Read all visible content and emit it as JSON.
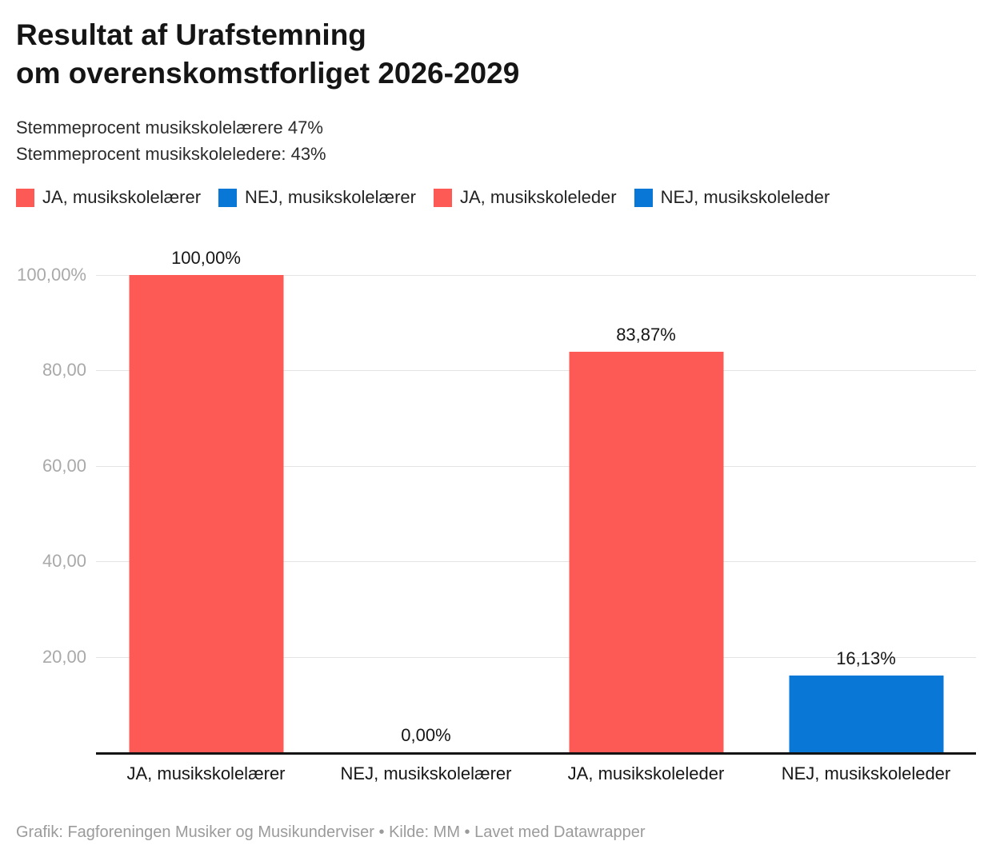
{
  "header": {
    "title": "Resultat af Urafstemning\nom overenskomstforliget 2026-2029",
    "subtitle": "Stemmeprocent musikskolelærere 47%\nStemmeprocent musikskoleledere: 43%"
  },
  "legend": {
    "position": "top",
    "items": [
      {
        "label": "JA, musikskolelærer",
        "color": "#fd5a55"
      },
      {
        "label": "NEJ, musikskolelærer",
        "color": "#0877d6"
      },
      {
        "label": "JA, musikskoleleder",
        "color": "#fd5a55"
      },
      {
        "label": "NEJ, musikskoleleder",
        "color": "#0877d6"
      }
    ]
  },
  "chart_data": {
    "type": "bar",
    "title": "Resultat af Urafstemning om overenskomstforliget 2026-2029",
    "categories": [
      "JA, musikskolelærer",
      "NEJ, musikskolelærer",
      "JA, musikskoleleder",
      "NEJ, musikskoleleder"
    ],
    "values": [
      100.0,
      0.0,
      83.87,
      16.13
    ],
    "value_labels": [
      "100,00%",
      "0,00%",
      "83,87%",
      "16,13%"
    ],
    "bar_colors": [
      "#fd5a55",
      "#0877d6",
      "#fd5a55",
      "#0877d6"
    ],
    "xlabel": "",
    "ylabel": "",
    "ylim": [
      0,
      100
    ],
    "yticks": [
      {
        "value": 100,
        "label": "100,00%"
      },
      {
        "value": 80,
        "label": "80,00"
      },
      {
        "value": 60,
        "label": "60,00"
      },
      {
        "value": 40,
        "label": "40,00"
      },
      {
        "value": 20,
        "label": "20,00"
      }
    ],
    "grid": "horizontal-only",
    "legend_position": "top",
    "gridline_color": "#e4e4e4",
    "axis_line_color": "#141414",
    "tick_label_color": "#a9a9a9"
  },
  "footer": {
    "credit": "Grafik: Fagforeningen Musiker og Musikunderviser • Kilde: MM • Lavet med Datawrapper"
  }
}
